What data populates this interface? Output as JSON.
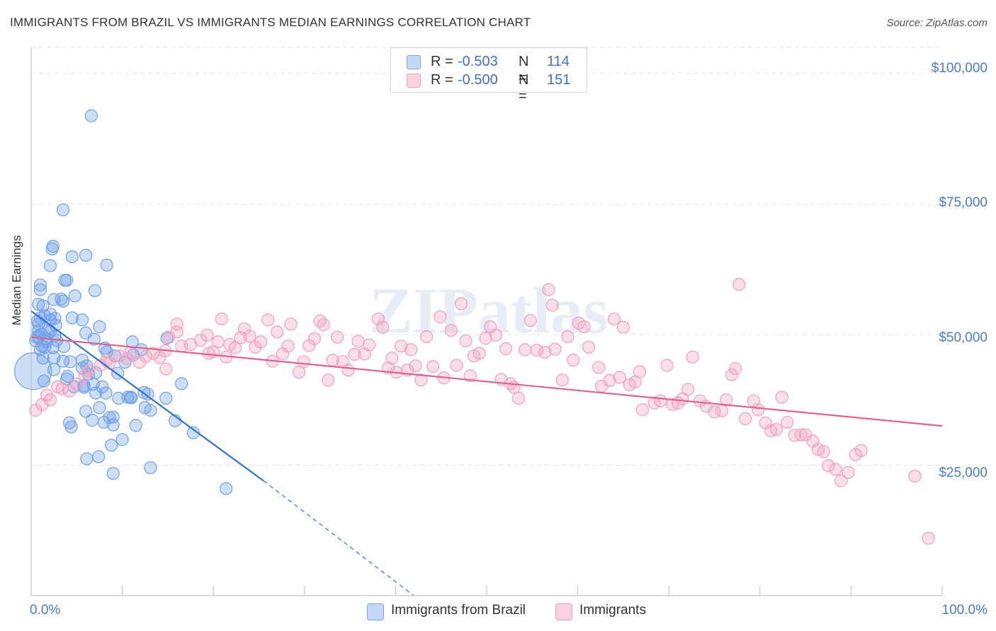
{
  "chart_data": {
    "type": "scatter",
    "title": "IMMIGRANTS FROM BRAZIL VS IMMIGRANTS MEDIAN EARNINGS CORRELATION CHART",
    "source": "Source: ZipAtlas.com",
    "ylabel": "Median Earnings",
    "xlabel": "",
    "xlim": [
      0,
      100
    ],
    "ylim": [
      0,
      105000
    ],
    "x_tick_labels": [
      "0.0%",
      "100.0%"
    ],
    "y_ticks": [
      25000,
      50000,
      75000,
      100000
    ],
    "y_tick_labels": [
      "$25,000",
      "$50,000",
      "$75,000",
      "$100,000"
    ],
    "grid": true,
    "legend_position": "top-center",
    "watermark": "ZIPatlas",
    "series": [
      {
        "name": "Immigrants from Brazil",
        "color": "#6fa0e8",
        "line_color": "#2f72d6",
        "r_label": "R =",
        "r": "-0.503",
        "n_label": "N =",
        "n": "114",
        "trend": {
          "x0": 0,
          "y0": 54500,
          "x1": 25.5,
          "y1": 22000,
          "dash_x1": 42,
          "dash_y1": 0
        },
        "points": [
          [
            6.6,
            91900
          ],
          [
            3.5,
            73900
          ],
          [
            2.4,
            66900
          ],
          [
            2.3,
            66400
          ],
          [
            6.0,
            65200
          ],
          [
            4.5,
            64900
          ],
          [
            8.3,
            63300
          ],
          [
            2.1,
            63200
          ],
          [
            3.7,
            60400
          ],
          [
            1.0,
            59500
          ],
          [
            3.9,
            60400
          ],
          [
            4.8,
            57400
          ],
          [
            7.0,
            58400
          ],
          [
            1.0,
            58600
          ],
          [
            2.5,
            56700
          ],
          [
            3.3,
            56800
          ],
          [
            0.8,
            55800
          ],
          [
            1.3,
            55500
          ],
          [
            3.5,
            56400
          ],
          [
            2.1,
            53900
          ],
          [
            1.0,
            53200
          ],
          [
            1.5,
            53600
          ],
          [
            0.7,
            52600
          ],
          [
            0.8,
            52000
          ],
          [
            2.1,
            52800
          ],
          [
            2.6,
            53100
          ],
          [
            4.5,
            53200
          ],
          [
            5.6,
            52800
          ],
          [
            7.5,
            51500
          ],
          [
            2.7,
            51800
          ],
          [
            1.9,
            50900
          ],
          [
            0.8,
            50700
          ],
          [
            0.8,
            49600
          ],
          [
            1.1,
            50100
          ],
          [
            2.1,
            50600
          ],
          [
            0.6,
            49500
          ],
          [
            0.5,
            48800
          ],
          [
            1.7,
            49200
          ],
          [
            1.2,
            47800
          ],
          [
            1.0,
            47100
          ],
          [
            1.5,
            47600
          ],
          [
            2.4,
            47500
          ],
          [
            3.6,
            47700
          ],
          [
            2.8,
            48900
          ],
          [
            6.0,
            50300
          ],
          [
            6.9,
            49100
          ],
          [
            8.1,
            47400
          ],
          [
            11.1,
            48600
          ],
          [
            14.9,
            49300
          ],
          [
            1.3,
            45500
          ],
          [
            2.5,
            45600
          ],
          [
            3.5,
            44900
          ],
          [
            5.6,
            45100
          ],
          [
            4.3,
            44800
          ],
          [
            6.1,
            44000
          ],
          [
            8.3,
            46700
          ],
          [
            9.2,
            45900
          ],
          [
            11.2,
            46100
          ],
          [
            12.1,
            47100
          ],
          [
            2.5,
            43300
          ],
          [
            4.0,
            42000
          ],
          [
            5.6,
            43600
          ],
          [
            7.1,
            42700
          ],
          [
            3.9,
            41500
          ],
          [
            1.4,
            41100
          ],
          [
            4.7,
            40000
          ],
          [
            5.8,
            40200
          ],
          [
            9.5,
            42600
          ],
          [
            10.3,
            44700
          ],
          [
            6.3,
            42400
          ],
          [
            7.1,
            38800
          ],
          [
            8.2,
            38800
          ],
          [
            9.6,
            37800
          ],
          [
            10.9,
            38000
          ],
          [
            12.4,
            38900
          ],
          [
            12.8,
            38600
          ],
          [
            14.8,
            37800
          ],
          [
            5.8,
            39900
          ],
          [
            6.8,
            40500
          ],
          [
            7.8,
            40000
          ],
          [
            16.5,
            40600
          ],
          [
            11.0,
            37900
          ],
          [
            10.6,
            38000
          ],
          [
            7.5,
            36000
          ],
          [
            6.0,
            35300
          ],
          [
            8.6,
            34100
          ],
          [
            9.0,
            34200
          ],
          [
            6.7,
            33600
          ],
          [
            12.5,
            36000
          ],
          [
            13.1,
            35500
          ],
          [
            4.2,
            33100
          ],
          [
            4.4,
            32300
          ],
          [
            8.0,
            33200
          ],
          [
            9.0,
            32700
          ],
          [
            11.5,
            32600
          ],
          [
            15.8,
            33500
          ],
          [
            17.8,
            31200
          ],
          [
            10.0,
            29900
          ],
          [
            8.8,
            28800
          ],
          [
            7.4,
            26600
          ],
          [
            6.1,
            26200
          ],
          [
            9.0,
            23400
          ],
          [
            13.1,
            24500
          ],
          [
            21.4,
            20500
          ],
          [
            1.7,
            48600
          ],
          [
            2.6,
            49700
          ],
          [
            0.2,
            43000
          ]
        ]
      },
      {
        "name": "Immigrants",
        "color": "#f0a0bd",
        "line_color": "#e0628f",
        "r_label": "R =",
        "r": "-0.500",
        "n_label": "N =",
        "n": "151",
        "trend": {
          "x0": 0,
          "y0": 49500,
          "x1": 100,
          "y1": 32500
        },
        "points": [
          [
            0.5,
            35500
          ],
          [
            1.2,
            36600
          ],
          [
            1.7,
            38400
          ],
          [
            2.1,
            37500
          ],
          [
            2.9,
            40000
          ],
          [
            3.4,
            39600
          ],
          [
            4.2,
            39200
          ],
          [
            5.0,
            40500
          ],
          [
            5.9,
            42100
          ],
          [
            6.3,
            43100
          ],
          [
            7.6,
            44100
          ],
          [
            8.3,
            45100
          ],
          [
            8.6,
            44500
          ],
          [
            9.7,
            45900
          ],
          [
            10.5,
            45400
          ],
          [
            10.9,
            46500
          ],
          [
            11.9,
            44700
          ],
          [
            12.6,
            45800
          ],
          [
            13.4,
            46400
          ],
          [
            14.1,
            45600
          ],
          [
            14.7,
            46900
          ],
          [
            14.8,
            43400
          ],
          [
            15.1,
            49500
          ],
          [
            16.0,
            50500
          ],
          [
            16.5,
            47800
          ],
          [
            16.0,
            52000
          ],
          [
            17.5,
            48100
          ],
          [
            18.6,
            48900
          ],
          [
            19.3,
            49900
          ],
          [
            19.5,
            46400
          ],
          [
            20.0,
            46700
          ],
          [
            20.5,
            48600
          ],
          [
            20.9,
            53000
          ],
          [
            21.4,
            45700
          ],
          [
            21.8,
            48100
          ],
          [
            22.4,
            47500
          ],
          [
            23.0,
            49400
          ],
          [
            23.4,
            51100
          ],
          [
            24.0,
            49700
          ],
          [
            24.6,
            47600
          ],
          [
            25.2,
            48600
          ],
          [
            26.0,
            52800
          ],
          [
            26.5,
            44900
          ],
          [
            27.0,
            50500
          ],
          [
            27.6,
            46300
          ],
          [
            28.2,
            47800
          ],
          [
            28.5,
            52000
          ],
          [
            29.4,
            42800
          ],
          [
            29.9,
            44800
          ],
          [
            30.5,
            47900
          ],
          [
            31.1,
            49200
          ],
          [
            31.7,
            52600
          ],
          [
            32.1,
            51900
          ],
          [
            32.6,
            41300
          ],
          [
            33.1,
            45100
          ],
          [
            33.6,
            49500
          ],
          [
            34.2,
            44800
          ],
          [
            34.8,
            43200
          ],
          [
            35.5,
            46200
          ],
          [
            35.9,
            48700
          ],
          [
            36.6,
            46300
          ],
          [
            37.1,
            48000
          ],
          [
            38.1,
            53000
          ],
          [
            38.6,
            51400
          ],
          [
            39.2,
            43600
          ],
          [
            39.6,
            45500
          ],
          [
            40.1,
            42800
          ],
          [
            40.6,
            47800
          ],
          [
            41.3,
            43200
          ],
          [
            41.7,
            47100
          ],
          [
            42.2,
            44000
          ],
          [
            42.8,
            41300
          ],
          [
            43.4,
            49600
          ],
          [
            44.1,
            43900
          ],
          [
            44.9,
            53400
          ],
          [
            45.3,
            41700
          ],
          [
            46.1,
            50800
          ],
          [
            46.7,
            44100
          ],
          [
            47.2,
            55900
          ],
          [
            47.7,
            48800
          ],
          [
            48.2,
            42100
          ],
          [
            48.6,
            45900
          ],
          [
            49.2,
            46400
          ],
          [
            49.9,
            49300
          ],
          [
            50.4,
            51500
          ],
          [
            51.0,
            49900
          ],
          [
            51.6,
            41400
          ],
          [
            52.1,
            47300
          ],
          [
            52.6,
            40600
          ],
          [
            53.0,
            39900
          ],
          [
            53.5,
            37800
          ],
          [
            54.2,
            47100
          ],
          [
            54.8,
            52700
          ],
          [
            55.5,
            47000
          ],
          [
            56.4,
            46600
          ],
          [
            56.8,
            58600
          ],
          [
            57.2,
            55600
          ],
          [
            57.5,
            47200
          ],
          [
            58.3,
            41300
          ],
          [
            58.9,
            49600
          ],
          [
            59.5,
            45100
          ],
          [
            60.1,
            52200
          ],
          [
            60.7,
            51500
          ],
          [
            61.2,
            47600
          ],
          [
            62.3,
            43700
          ],
          [
            62.6,
            40100
          ],
          [
            63.5,
            41200
          ],
          [
            64.0,
            53000
          ],
          [
            64.6,
            41800
          ],
          [
            65.0,
            51400
          ],
          [
            65.7,
            40400
          ],
          [
            66.3,
            40900
          ],
          [
            66.8,
            42900
          ],
          [
            67.1,
            35600
          ],
          [
            68.4,
            36900
          ],
          [
            69.1,
            37300
          ],
          [
            69.8,
            44100
          ],
          [
            70.4,
            36600
          ],
          [
            71.0,
            36900
          ],
          [
            71.5,
            37700
          ],
          [
            72.1,
            39500
          ],
          [
            72.6,
            45700
          ],
          [
            73.4,
            37300
          ],
          [
            74.1,
            36300
          ],
          [
            75.0,
            35200
          ],
          [
            75.8,
            35400
          ],
          [
            76.3,
            37500
          ],
          [
            76.9,
            42300
          ],
          [
            77.3,
            43500
          ],
          [
            77.7,
            59600
          ],
          [
            78.4,
            33900
          ],
          [
            79.3,
            37300
          ],
          [
            79.8,
            35600
          ],
          [
            80.6,
            33100
          ],
          [
            81.2,
            31600
          ],
          [
            81.8,
            31800
          ],
          [
            82.4,
            38000
          ],
          [
            83.0,
            33200
          ],
          [
            83.8,
            30700
          ],
          [
            84.5,
            30800
          ],
          [
            85.0,
            30800
          ],
          [
            85.8,
            29600
          ],
          [
            86.4,
            28000
          ],
          [
            87.0,
            27600
          ],
          [
            87.5,
            24900
          ],
          [
            88.3,
            24200
          ],
          [
            88.9,
            22000
          ],
          [
            89.7,
            23600
          ],
          [
            90.5,
            27000
          ],
          [
            91.1,
            27800
          ],
          [
            97.0,
            22900
          ],
          [
            98.5,
            11000
          ]
        ]
      }
    ]
  }
}
